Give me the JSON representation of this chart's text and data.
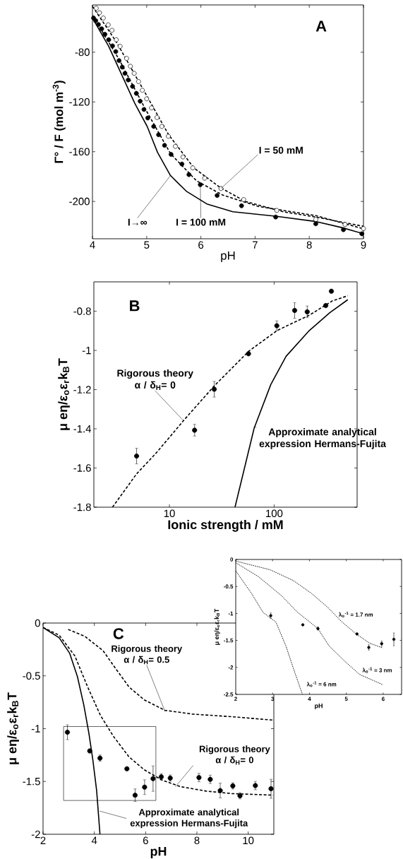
{
  "chart_data": [
    {
      "type": "line",
      "xlim": [
        4,
        9
      ],
      "ylim": [
        -230,
        -42
      ],
      "xticks": [
        4,
        5,
        6,
        7,
        8,
        9
      ],
      "yticks": [
        -80,
        -120,
        -160,
        -200
      ],
      "xlabel": "pH",
      "ylabel": "Γ° / F (mol m$^{-3}$)",
      "annotations": [
        "A",
        {
          "text": "I = 50 mM",
          "x": 6.37,
          "y": -189.6
        },
        {
          "text": "I = 100 mM",
          "x": 5.99,
          "y": -186.5
        },
        {
          "text": "I→∞",
          "x": 5.44,
          "y": -179.2
        }
      ],
      "series": [
        {
          "type": "line",
          "color": "#000000",
          "line_style": "solid",
          "marker": "none",
          "x": [
            4,
            4.3,
            4.54,
            4.78,
            5.01,
            5.2,
            5.44,
            5.73,
            6.11,
            6.59,
            7.4,
            8.1,
            8.6,
            9
          ],
          "values": [
            -52.5,
            -75.3,
            -98.2,
            -121,
            -139.7,
            -160.5,
            -179.2,
            -191.7,
            -202,
            -208.3,
            -212,
            -216,
            -221,
            -226
          ]
        },
        {
          "type": "line",
          "color": "#000000",
          "line_style": "dashed",
          "marker": "none",
          "x": [
            4,
            4.44,
            4.92,
            5.4,
            5.87,
            6.35,
            6.82,
            7.53,
            8.12,
            9
          ],
          "values": [
            -43.1,
            -71.7,
            -108.7,
            -146,
            -173,
            -188.6,
            -200,
            -208.4,
            -212.5,
            -220
          ]
        },
        {
          "type": "line",
          "color": "#000000",
          "line_style": "dashed",
          "marker": "none",
          "x": [
            4,
            4.49,
            4.97,
            5.44,
            5.92,
            6.4,
            7.06,
            8.12,
            9
          ],
          "values": [
            -50.4,
            -85.7,
            -125.2,
            -161.6,
            -183.4,
            -194.8,
            -204,
            -211.4,
            -222
          ]
        },
        {
          "type": "scatter",
          "color": "#ffffff",
          "marker": "circle",
          "x": [
            4.07,
            4.13,
            4.2,
            4.29,
            4.36,
            4.44,
            4.51,
            4.63,
            4.7,
            4.77,
            4.85,
            4.92,
            5.0,
            5.09,
            5.19,
            5.28,
            5.4,
            5.53,
            5.67,
            5.85,
            6.07,
            6.37,
            6.79,
            7.4,
            8.12,
            8.66,
            9.0
          ],
          "values": [
            -44.6,
            -48.3,
            -52.5,
            -58,
            -62.4,
            -70,
            -75.3,
            -85,
            -91.3,
            -97,
            -103.6,
            -110.6,
            -117.5,
            -124.8,
            -132.5,
            -139.7,
            -147.6,
            -155.7,
            -164.2,
            -173,
            -181.3,
            -189.6,
            -198.5,
            -207.2,
            -214.5,
            -218.5,
            -221.8
          ]
        },
        {
          "type": "scatter",
          "color": "#000000",
          "marker": "circle",
          "x": [
            4.02,
            4.06,
            4.11,
            4.17,
            4.23,
            4.3,
            4.37,
            4.43,
            4.49,
            4.55,
            4.6,
            4.66,
            4.74,
            4.81,
            4.88,
            4.95,
            5.02,
            5.13,
            5.22,
            5.33,
            5.45,
            5.65,
            5.78,
            5.99,
            6.3,
            6.75,
            7.38,
            8.12,
            8.63,
            8.97
          ],
          "values": [
            -52.5,
            -54.6,
            -57.7,
            -61.2,
            -65.6,
            -70,
            -74.9,
            -79.5,
            -86.8,
            -92,
            -97,
            -102.3,
            -107.5,
            -113.1,
            -119.4,
            -126,
            -132.9,
            -139.7,
            -146.4,
            -154.9,
            -162.2,
            -169.9,
            -178.4,
            -186.5,
            -195.2,
            -203.5,
            -212.5,
            -218,
            -222.7,
            -226
          ]
        }
      ]
    },
    {
      "type": "line",
      "log": "x",
      "xlim": [
        1.9,
        620
      ],
      "ylim": [
        -1.8,
        -0.65
      ],
      "xticks": [
        10,
        100
      ],
      "yticks": [
        -0.8,
        -1,
        -1.2,
        -1.4,
        -1.6,
        -1.8
      ],
      "xlabel": "Ionic strength / mM",
      "ylabel": "μ eη/ε$_{o}$ε$_{r}$k$_{B}$T",
      "annotations": [
        "B",
        {
          "text": "Rigorous theory α / δ$_{H}$= 0",
          "x": 13.6,
          "y": -1.358
        },
        {
          "text": "Approximate analytical expression Hermans-Fujita",
          "x": 64,
          "y": -1.39
        }
      ],
      "series": [
        {
          "type": "line",
          "color": "#000000",
          "line_style": "dashed",
          "marker": "none",
          "x": [
            2.86,
            4.86,
            7.55,
            14,
            26.8,
            57.5,
            107,
            217,
            360,
            505
          ],
          "values": [
            -1.8,
            -1.63,
            -1.521,
            -1.351,
            -1.181,
            -1.003,
            -0.898,
            -0.82,
            -0.747,
            -0.721
          ]
        },
        {
          "type": "line",
          "color": "#000000",
          "line_style": "solid",
          "marker": "none",
          "x": [
            42.3,
            64.4,
            92.9,
            130,
            217,
            340,
            505
          ],
          "values": [
            -1.8,
            -1.397,
            -1.174,
            -1.03,
            -0.898,
            -0.807,
            -0.741
          ]
        },
        {
          "type": "scatter",
          "color": "#000000",
          "marker": "circle",
          "x": [
            4.86,
            17.4,
            26.8,
            56.9,
            106,
            157,
            207,
            311,
            352
          ],
          "values": [
            -1.539,
            -1.407,
            -1.198,
            -1.017,
            -0.874,
            -0.796,
            -0.803,
            -0.771,
            -0.698
          ],
          "errors": [
            0.04,
            0.03,
            0.04,
            null,
            0.025,
            0.04,
            0.03,
            null,
            null
          ]
        }
      ]
    },
    {
      "type": "line",
      "xlim": [
        2,
        11
      ],
      "ylim": [
        -2,
        0
      ],
      "xticks": [
        2,
        4,
        6,
        8,
        10
      ],
      "yticks": [
        0,
        -0.5,
        -1,
        -1.5,
        -2
      ],
      "xlabel": "pH",
      "ylabel": "μ eη/ε$_{o}$ε$_{r}$k$_{B}$T",
      "annotations": [
        "C",
        {
          "text": "Rigorous theory α / δ$_{H}$= 0.5",
          "x": 6.76,
          "y": -0.839
        },
        {
          "text": "Rigorous theory α / δ$_{H}$= 0",
          "x": 7.16,
          "y": -1.55
        },
        {
          "text": "Approximate analytical expression Hermans-Fujita",
          "x": 4.2,
          "y": -1.78
        }
      ],
      "series": [
        {
          "type": "line",
          "color": "#000000",
          "line_style": "dashed",
          "marker": "none",
          "x": [
            2.98,
            3.64,
            4.34,
            4.84,
            5.35,
            5.95,
            6.75,
            7.86,
            9.37,
            10.97
          ],
          "values": [
            -0.061,
            -0.127,
            -0.262,
            -0.434,
            -0.605,
            -0.728,
            -0.826,
            -0.863,
            -0.887,
            -0.919
          ]
        },
        {
          "type": "line",
          "color": "#000000",
          "line_style": "dashed",
          "marker": "none",
          "x": [
            2,
            2.63,
            3.24,
            3.74,
            4.24,
            4.74,
            5.35,
            5.95,
            6.65,
            7.36,
            8.36,
            9.37,
            10.97
          ],
          "values": [
            -0.042,
            -0.115,
            -0.311,
            -0.605,
            -0.875,
            -1.071,
            -1.267,
            -1.39,
            -1.488,
            -1.549,
            -1.591,
            -1.615,
            -1.63
          ]
        },
        {
          "type": "line",
          "color": "#000000",
          "line_style": "solid",
          "marker": "none",
          "x": [
            2,
            2.63,
            3.04,
            3.34,
            3.59,
            3.79,
            3.94,
            4.09,
            4.22
          ],
          "values": [
            -0.042,
            -0.14,
            -0.287,
            -0.507,
            -0.777,
            -1.047,
            -1.292,
            -1.586,
            -2.0
          ]
        },
        {
          "type": "scatter",
          "color": "#000000",
          "marker": "circle",
          "x": [
            2.95,
            3.82,
            4.22,
            5.27,
            5.59,
            5.96,
            6.29,
            6.61,
            6.96,
            8.08,
            8.52,
            8.91,
            9.4,
            9.68,
            10.28,
            10.89
          ],
          "values": [
            -1.034,
            -1.211,
            -1.279,
            -1.38,
            -1.63,
            -1.554,
            -1.473,
            -1.456,
            -1.468,
            -1.463,
            -1.48,
            -1.586,
            -1.542,
            -1.635,
            -1.539,
            -1.569
          ],
          "errors": [
            0.07,
            null,
            0.03,
            null,
            0.06,
            0.07,
            0.12,
            0.03,
            0.03,
            0.04,
            0.04,
            0.07,
            0.03,
            0.03,
            0.04,
            0.09
          ]
        }
      ]
    },
    {
      "type": "line",
      "xlim": [
        2,
        6.5
      ],
      "ylim": [
        -2.5,
        0
      ],
      "xticks": [
        2,
        3,
        4,
        5,
        6
      ],
      "yticks": [
        0,
        -0.5,
        -1,
        -1.5,
        -2,
        -2.5
      ],
      "xlabel": "pH",
      "ylabel": "μ eη/ε$_{o}$ε$_{r}$k$_{B}$T",
      "annotations": [
        "λ$_{o}$$^{-1}$ = 1.7 nm",
        "λ$_{o}$$^{-1}$ = 3 nm",
        "λ$_{o}$$^{-1}$ = 6 nm"
      ],
      "series": [
        {
          "type": "line",
          "color": "#000000",
          "line_style": "dotted",
          "marker": "none",
          "x": [
            2,
            2.93,
            3.56,
            4.06,
            4.5,
            4.87,
            5.25,
            5.63,
            5.99
          ],
          "values": [
            -0.03,
            -0.19,
            -0.39,
            -0.63,
            -0.89,
            -1.15,
            -1.37,
            -1.55,
            -1.64
          ]
        },
        {
          "type": "line",
          "color": "#000000",
          "line_style": "dotted",
          "marker": "none",
          "x": [
            2,
            2.62,
            3.24,
            3.68,
            4.23,
            4.53,
            4.95,
            5.36,
            5.99
          ],
          "values": [
            -0.06,
            -0.32,
            -0.67,
            -0.98,
            -1.28,
            -1.6,
            -1.88,
            -2.13,
            -2.32
          ]
        },
        {
          "type": "line",
          "color": "#000000",
          "line_style": "dotted",
          "marker": "none",
          "x": [
            2,
            2.43,
            2.74,
            3.09,
            3.36,
            3.57,
            3.81
          ],
          "values": [
            -0.21,
            -0.63,
            -0.98,
            -1.16,
            -1.6,
            -2.03,
            -2.5
          ]
        },
        {
          "type": "scatter",
          "color": "#000000",
          "marker": "circle",
          "x": [
            2.95,
            3.82,
            4.23,
            5.29,
            5.61,
            5.96,
            6.29
          ],
          "values": [
            -1.04,
            -1.21,
            -1.28,
            -1.38,
            -1.63,
            -1.56,
            -1.48
          ],
          "errors": [
            0.05,
            null,
            0.03,
            null,
            0.05,
            0.05,
            0.12
          ]
        }
      ]
    }
  ]
}
